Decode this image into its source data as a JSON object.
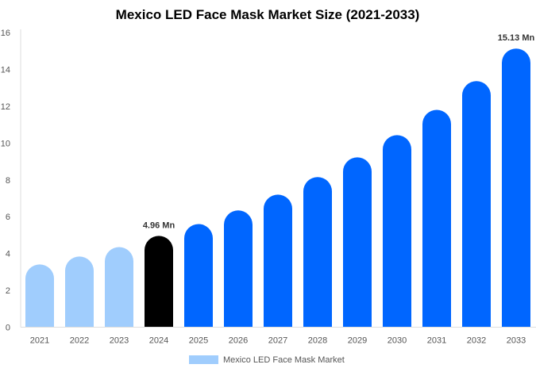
{
  "chart_data": {
    "type": "bar",
    "title": "Mexico LED Face Mask Market Size (2021-2033)",
    "categories": [
      "2021",
      "2022",
      "2023",
      "2024",
      "2025",
      "2026",
      "2027",
      "2028",
      "2029",
      "2030",
      "2031",
      "2032",
      "2033"
    ],
    "series": [
      {
        "name": "Mexico LED Face Mask Market",
        "values": [
          3.41,
          3.84,
          4.35,
          4.96,
          5.6,
          6.34,
          7.2,
          8.15,
          9.22,
          10.43,
          11.8,
          13.36,
          15.13
        ]
      }
    ],
    "data_labels": {
      "3": "4.96 Mn",
      "12": "15.13 Mn"
    },
    "ylim": [
      0,
      16
    ],
    "yticks": [
      0,
      2,
      4,
      6,
      8,
      10,
      12,
      14,
      16
    ],
    "xlabel": "",
    "ylabel": "",
    "grid": false,
    "legend": "bottom",
    "colors": {
      "historic": "#a0cdfd",
      "base_year": "#000000",
      "forecast": "#0066ff",
      "legend": "#a0cdfd"
    }
  }
}
